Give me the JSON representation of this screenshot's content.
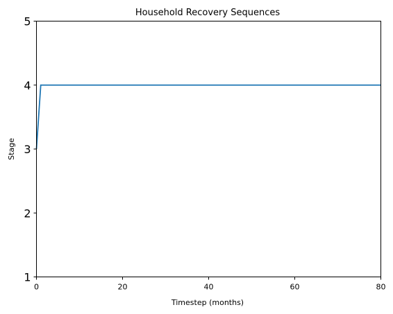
{
  "chart_data": {
    "type": "line",
    "title": "Household Recovery Sequences",
    "xlabel": "Timestep (months)",
    "ylabel": "Stage",
    "xlim": [
      0,
      80
    ],
    "ylim": [
      1,
      5
    ],
    "xticks": [
      0,
      20,
      40,
      60,
      80
    ],
    "yticks": [
      1,
      2,
      3,
      4,
      5
    ],
    "grid": false,
    "series": [
      {
        "color": "#1f77b4",
        "x": [
          0,
          1,
          80
        ],
        "y": [
          3,
          4,
          4
        ]
      }
    ]
  }
}
